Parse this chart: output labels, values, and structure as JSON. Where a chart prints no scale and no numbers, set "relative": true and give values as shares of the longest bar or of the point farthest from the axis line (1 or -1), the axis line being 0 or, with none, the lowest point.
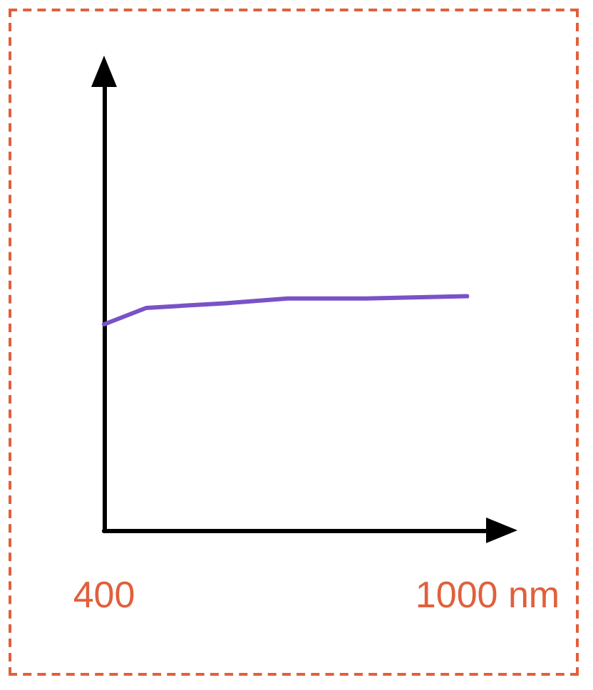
{
  "chart_data": {
    "type": "line",
    "relative": true,
    "xlim": [
      400,
      1000
    ],
    "xticks": [
      {
        "value": 400,
        "label": "400"
      },
      {
        "value": 1000,
        "label": "1000 nm"
      }
    ],
    "tick_labels": "x",
    "grid": false,
    "marker": "none",
    "line_style": "solid",
    "series": [
      {
        "color": "#7a52c7",
        "x": [
          400,
          466,
          589,
          687,
          810,
          968
        ],
        "values": [
          0.88,
          0.95,
          0.97,
          0.99,
          0.99,
          1
        ]
      }
    ]
  }
}
